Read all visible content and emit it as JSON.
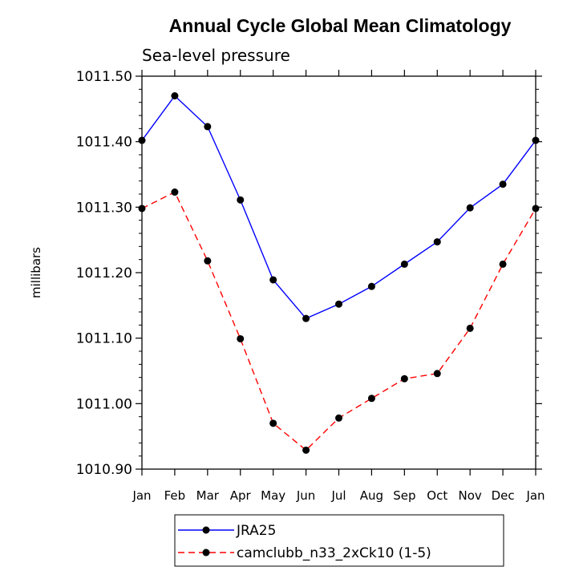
{
  "chart_data": {
    "type": "line",
    "title": "Annual Cycle Global Mean Climatology",
    "subtitle": "Sea-level pressure",
    "xlabel": "",
    "ylabel": "millibars",
    "categories": [
      "Jan",
      "Feb",
      "Mar",
      "Apr",
      "May",
      "Jun",
      "Jul",
      "Aug",
      "Sep",
      "Oct",
      "Nov",
      "Dec",
      "Jan"
    ],
    "ylim": [
      1010.9,
      1011.5
    ],
    "yticks": [
      "1010.90",
      "1011.00",
      "1011.10",
      "1011.20",
      "1011.30",
      "1011.40",
      "1011.50"
    ],
    "ytick_values": [
      1010.9,
      1011.0,
      1011.1,
      1011.2,
      1011.3,
      1011.4,
      1011.5
    ],
    "legend_placement": "bottom",
    "grid": false,
    "series": [
      {
        "name": "JRA25",
        "color": "#0000ff",
        "dash": "solid",
        "values": [
          1011.402,
          1011.47,
          1011.423,
          1011.311,
          1011.189,
          1011.13,
          1011.152,
          1011.179,
          1011.213,
          1011.247,
          1011.299,
          1011.335,
          1011.402
        ]
      },
      {
        "name": "camclubb_n33_2xCk10 (1-5)",
        "color": "#ff0000",
        "dash": "dashed",
        "values": [
          1011.298,
          1011.323,
          1011.218,
          1011.099,
          1010.97,
          1010.929,
          1010.978,
          1011.008,
          1011.038,
          1011.046,
          1011.115,
          1011.213,
          1011.298
        ]
      }
    ]
  }
}
